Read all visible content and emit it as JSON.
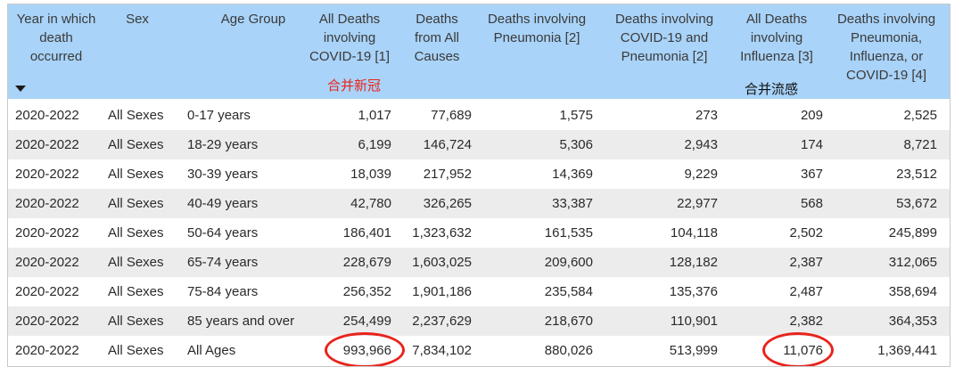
{
  "headers": [
    {
      "lines": [
        "Year in which",
        "death",
        "occurred"
      ]
    },
    {
      "lines": [
        "Sex"
      ]
    },
    {
      "lines": [
        "Age Group"
      ]
    },
    {
      "lines": [
        "All Deaths",
        "involving",
        "COVID-19 [1]"
      ]
    },
    {
      "lines": [
        "Deaths",
        "from All",
        "Causes"
      ]
    },
    {
      "lines": [
        "Deaths involving",
        "Pneumonia [2]"
      ]
    },
    {
      "lines": [
        "Deaths involving",
        "COVID-19 and",
        "Pneumonia [2]"
      ]
    },
    {
      "lines": [
        "All Deaths",
        "involving",
        "Influenza [3]"
      ]
    },
    {
      "lines": [
        "Deaths involving",
        "Pneumonia,",
        "Influenza, or",
        "COVID-19 [4]"
      ]
    }
  ],
  "annotations": {
    "covid": {
      "text": "合并新冠",
      "color": "#e8241c"
    },
    "flu": {
      "text": "合并流感",
      "color": "#111111"
    }
  },
  "rows": [
    [
      "2020-2022",
      "All Sexes",
      "0-17 years",
      "1,017",
      "77,689",
      "1,575",
      "273",
      "209",
      "2,525"
    ],
    [
      "2020-2022",
      "All Sexes",
      "18-29 years",
      "6,199",
      "146,724",
      "5,306",
      "2,943",
      "174",
      "8,721"
    ],
    [
      "2020-2022",
      "All Sexes",
      "30-39 years",
      "18,039",
      "217,952",
      "14,369",
      "9,229",
      "367",
      "23,512"
    ],
    [
      "2020-2022",
      "All Sexes",
      "40-49 years",
      "42,780",
      "326,265",
      "33,387",
      "22,977",
      "568",
      "53,672"
    ],
    [
      "2020-2022",
      "All Sexes",
      "50-64 years",
      "186,401",
      "1,323,632",
      "161,535",
      "104,118",
      "2,502",
      "245,899"
    ],
    [
      "2020-2022",
      "All Sexes",
      "65-74 years",
      "228,679",
      "1,603,025",
      "209,600",
      "128,182",
      "2,387",
      "312,065"
    ],
    [
      "2020-2022",
      "All Sexes",
      "75-84 years",
      "256,352",
      "1,901,186",
      "235,584",
      "135,376",
      "2,487",
      "358,694"
    ],
    [
      "2020-2022",
      "All Sexes",
      "85 years and over",
      "254,499",
      "2,237,629",
      "218,670",
      "110,901",
      "2,382",
      "364,353"
    ],
    [
      "2020-2022",
      "All Sexes",
      "All Ages",
      "993,966",
      "7,834,102",
      "880,026",
      "513,999",
      "11,076",
      "1,369,441"
    ]
  ]
}
